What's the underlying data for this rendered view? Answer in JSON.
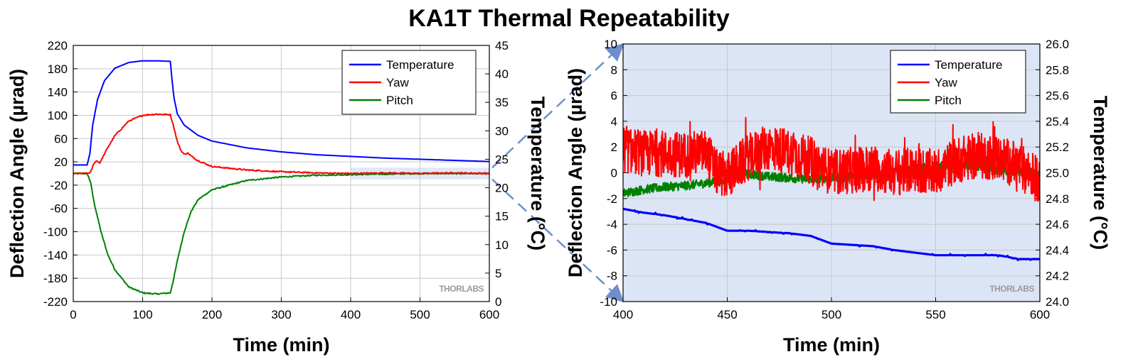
{
  "title": "KA1T Thermal Repeatability",
  "watermark": "THORLABS",
  "colors": {
    "temperature": "#0000ff",
    "yaw": "#ff0000",
    "pitch": "#008000",
    "zoom_fill": "#dce5f5",
    "zoom_line": "#6f8fcc"
  },
  "chart_data": [
    {
      "type": "line",
      "panel": "left",
      "xlabel": "Time (min)",
      "ylabel": "Deflection Angle (µrad)",
      "y2label": "Temperature (°C)",
      "xlim": [
        0,
        600
      ],
      "ylim": [
        -220,
        220
      ],
      "y2lim": [
        0,
        45
      ],
      "xticks": [
        "0",
        "100",
        "200",
        "300",
        "400",
        "500",
        "600"
      ],
      "yticks": [
        "220",
        "180",
        "140",
        "100",
        "60",
        "20",
        "-20",
        "-60",
        "-100",
        "-140",
        "-180",
        "-220"
      ],
      "y2ticks": [
        "45",
        "40",
        "35",
        "30",
        "25",
        "20",
        "15",
        "10",
        "5",
        "0"
      ],
      "grid": true,
      "legend_position": "top-right",
      "legend": [
        "Temperature",
        "Yaw",
        "Pitch"
      ],
      "highlight_region": {
        "x": [
          400,
          600
        ],
        "y": [
          -10,
          10
        ]
      },
      "series": [
        {
          "name": "Temperature",
          "axis": "right",
          "x": [
            0,
            10,
            20,
            24,
            28,
            35,
            45,
            60,
            80,
            100,
            120,
            140,
            142,
            145,
            150,
            160,
            180,
            200,
            250,
            300,
            350,
            400,
            450,
            500,
            550,
            600
          ],
          "values": [
            24.0,
            24.0,
            24.0,
            26.0,
            31.0,
            35.5,
            38.8,
            41.0,
            42.0,
            42.3,
            42.3,
            42.2,
            39.5,
            36.0,
            33.0,
            31.0,
            29.2,
            28.2,
            27.0,
            26.3,
            25.8,
            25.5,
            25.2,
            25.0,
            24.8,
            24.6
          ]
        },
        {
          "name": "Yaw",
          "axis": "left",
          "x": [
            0,
            20,
            25,
            30,
            34,
            38,
            40,
            50,
            60,
            80,
            100,
            120,
            140,
            145,
            150,
            155,
            160,
            165,
            170,
            180,
            200,
            250,
            300,
            350,
            400,
            450,
            500,
            550,
            600
          ],
          "values": [
            0,
            0,
            2,
            18,
            22,
            18,
            22,
            45,
            65,
            90,
            100,
            102,
            101,
            80,
            55,
            40,
            33,
            35,
            30,
            22,
            12,
            6,
            3,
            1,
            0,
            1,
            0,
            1,
            0
          ]
        },
        {
          "name": "Pitch",
          "axis": "left",
          "x": [
            0,
            20,
            25,
            30,
            40,
            50,
            60,
            80,
            100,
            120,
            140,
            145,
            150,
            160,
            170,
            180,
            200,
            250,
            300,
            350,
            400,
            450,
            500,
            550,
            600
          ],
          "values": [
            0,
            0,
            -15,
            -50,
            -100,
            -140,
            -165,
            -195,
            -205,
            -207,
            -205,
            -180,
            -150,
            -100,
            -65,
            -45,
            -28,
            -12,
            -6,
            -3,
            -2,
            -1,
            0,
            0,
            0
          ]
        }
      ]
    },
    {
      "type": "line",
      "panel": "right",
      "xlabel": "Time (min)",
      "ylabel": "Deflection Angle (µrad)",
      "y2label": "Temperature (°C)",
      "xlim": [
        400,
        600
      ],
      "ylim": [
        -10,
        10
      ],
      "y2lim": [
        24.0,
        26.0
      ],
      "xticks": [
        "400",
        "450",
        "500",
        "550",
        "600"
      ],
      "yticks": [
        "10",
        "8",
        "6",
        "4",
        "2",
        "0",
        "-2",
        "-4",
        "-6",
        "-8",
        "-10"
      ],
      "y2ticks": [
        "26.0",
        "25.8",
        "25.6",
        "25.4",
        "25.2",
        "25.0",
        "24.8",
        "24.6",
        "24.4",
        "24.2",
        "24.0"
      ],
      "grid": true,
      "legend_position": "top-right",
      "legend": [
        "Temperature",
        "Yaw",
        "Pitch"
      ],
      "series": [
        {
          "name": "Temperature",
          "axis": "right",
          "x": [
            400,
            410,
            420,
            430,
            440,
            450,
            460,
            470,
            480,
            490,
            500,
            510,
            520,
            530,
            540,
            550,
            560,
            570,
            580,
            590,
            600
          ],
          "values": [
            24.72,
            24.69,
            24.67,
            24.64,
            24.61,
            24.55,
            24.55,
            24.54,
            24.53,
            24.51,
            24.45,
            24.44,
            24.43,
            24.4,
            24.38,
            24.36,
            24.36,
            24.36,
            24.36,
            24.33,
            24.33
          ]
        },
        {
          "name": "Yaw",
          "axis": "left",
          "x": [
            400,
            410,
            420,
            430,
            440,
            445,
            450,
            460,
            470,
            480,
            490,
            500,
            510,
            520,
            530,
            540,
            550,
            560,
            570,
            580,
            590,
            600
          ],
          "values": [
            1.8,
            1.5,
            1.5,
            1.4,
            1.6,
            0.0,
            -0.2,
            1.2,
            2.0,
            1.6,
            1.0,
            0.0,
            0.2,
            0.4,
            0.0,
            0.2,
            0.0,
            1.0,
            1.3,
            1.2,
            0.5,
            -0.5
          ]
        },
        {
          "name": "Pitch",
          "axis": "left",
          "x": [
            400,
            410,
            420,
            430,
            440,
            450,
            455,
            460,
            470,
            480,
            490,
            500,
            510,
            520,
            530,
            540,
            550,
            560,
            570,
            580,
            590,
            600
          ],
          "values": [
            -1.6,
            -1.3,
            -1.1,
            -1.0,
            -0.8,
            -0.5,
            0.0,
            -0.1,
            -0.3,
            -0.4,
            -0.5,
            -0.4,
            -0.3,
            -0.1,
            0.0,
            0.3,
            0.5,
            0.6,
            0.5,
            0.2,
            0.1,
            0.0
          ]
        }
      ]
    }
  ]
}
